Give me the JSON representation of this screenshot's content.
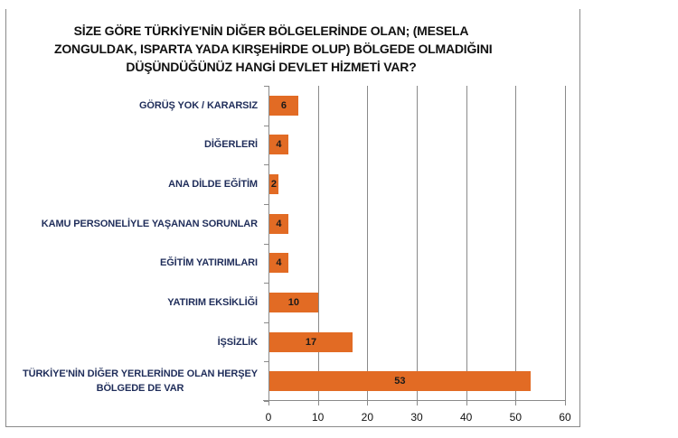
{
  "chart_data": {
    "type": "bar",
    "orientation": "horizontal",
    "title": "SİZE GÖRE TÜRKİYE'NİN DİĞER BÖLGELERİNDE OLAN; (MESELA ZONGULDAK, ISPARTA YADA KIRŞEHİRDE OLUP) BÖLGEDE OLMADIĞINI DÜŞÜNDÜĞÜNÜZ HANGİ DEVLET HİZMETİ VAR?",
    "title_lines": [
      "SİZE GÖRE TÜRKİYE'NİN DİĞER BÖLGELERİNDE OLAN; (MESELA",
      "ZONGULDAK, ISPARTA YADA KIRŞEHİRDE OLUP) BÖLGEDE OLMADIĞINI",
      "DÜŞÜNDÜĞÜNÜZ HANGİ DEVLET HİZMETİ VAR?"
    ],
    "categories": [
      "GÖRÜŞ YOK / KARARSIZ",
      "DİĞERLERİ",
      "ANA DİLDE EĞİTİM",
      "KAMU PERSONELİYLE YAŞANAN SORUNLAR",
      "EĞİTİM YATIRIMLARI",
      "YATIRIM EKSİKLİĞİ",
      "İŞSİZLİK",
      "TÜRKİYE'NİN DİĞER YERLERİNDE OLAN HERŞEY BÖLGEDE DE VAR"
    ],
    "category_label_lines": [
      [
        "GÖRÜŞ YOK / KARARSIZ"
      ],
      [
        "DİĞERLERİ"
      ],
      [
        "ANA DİLDE EĞİTİM"
      ],
      [
        "KAMU PERSONELİYLE YAŞANAN SORUNLAR"
      ],
      [
        "EĞİTİM YATIRIMLARI"
      ],
      [
        "YATIRIM EKSİKLİĞİ"
      ],
      [
        "İŞSİZLİK"
      ],
      [
        "TÜRKİYE'NİN DİĞER YERLERİNDE OLAN  HERŞEY",
        "BÖLGEDE DE VAR"
      ]
    ],
    "values": [
      6,
      4,
      2,
      4,
      4,
      10,
      17,
      53
    ],
    "value_labels": [
      "6",
      "4",
      "2",
      "4",
      "4",
      "10",
      "17",
      "53"
    ],
    "xlabel": "",
    "ylabel": "",
    "xlim": [
      0,
      60
    ],
    "xticks": [
      0,
      10,
      20,
      30,
      40,
      50,
      60
    ],
    "xtick_labels": [
      "0",
      "10",
      "20",
      "30",
      "40",
      "50",
      "60"
    ],
    "grid": "vertical",
    "legend": "none",
    "colors": {
      "bar": "#e26b24",
      "category_label": "#1f2d5a",
      "title": "#111111",
      "gridline": "#8a8a8a"
    }
  }
}
